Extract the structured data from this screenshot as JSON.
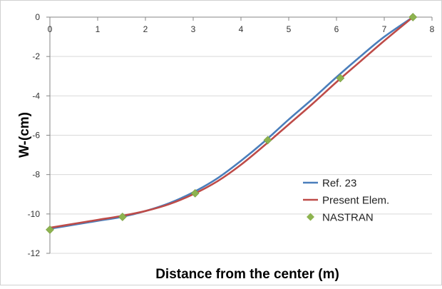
{
  "chart_data": {
    "type": "line",
    "title": "",
    "xlabel": "Distance from the center (m)",
    "ylabel": "W-(cm)",
    "xlim": [
      0,
      8
    ],
    "ylim": [
      -12,
      0
    ],
    "x_ticks": [
      0,
      1,
      2,
      3,
      4,
      5,
      6,
      7,
      8
    ],
    "y_ticks": [
      0,
      -2,
      -4,
      -6,
      -8,
      -10,
      -12
    ],
    "x_tick_labels": [
      "0",
      "1",
      "2",
      "3",
      "4",
      "5",
      "6",
      "7",
      "8"
    ],
    "y_tick_labels": [
      "0",
      "-2",
      "-4",
      "-6",
      "-8",
      "-10",
      "-12"
    ],
    "grid": "horizontal",
    "legend_position": "bottom-right",
    "series": [
      {
        "name": "Ref. 23",
        "kind": "line",
        "color": "#4a7ebb",
        "x": [
          0,
          0.5,
          1,
          1.5,
          2,
          2.5,
          3,
          3.5,
          4,
          4.5,
          5,
          5.5,
          6,
          6.5,
          7,
          7.6
        ],
        "y": [
          -10.75,
          -10.55,
          -10.35,
          -10.15,
          -9.85,
          -9.45,
          -8.9,
          -8.2,
          -7.3,
          -6.3,
          -5.2,
          -4.15,
          -3.05,
          -2.0,
          -1.0,
          0
        ]
      },
      {
        "name": "Present Elem.",
        "kind": "line",
        "color": "#be4b48",
        "x": [
          0,
          0.5,
          1,
          1.5,
          2,
          2.5,
          3,
          3.5,
          4,
          4.5,
          5,
          5.5,
          6,
          6.5,
          7,
          7.6
        ],
        "y": [
          -10.7,
          -10.5,
          -10.3,
          -10.1,
          -9.85,
          -9.5,
          -9.0,
          -8.35,
          -7.5,
          -6.5,
          -5.45,
          -4.4,
          -3.3,
          -2.25,
          -1.2,
          0
        ]
      },
      {
        "name": "NASTRAN",
        "kind": "marker",
        "color": "#8db34f",
        "x": [
          0,
          1.52,
          3.04,
          4.56,
          6.08,
          7.6
        ],
        "y": [
          -10.8,
          -10.15,
          -8.95,
          -6.25,
          -3.1,
          0
        ]
      }
    ]
  }
}
